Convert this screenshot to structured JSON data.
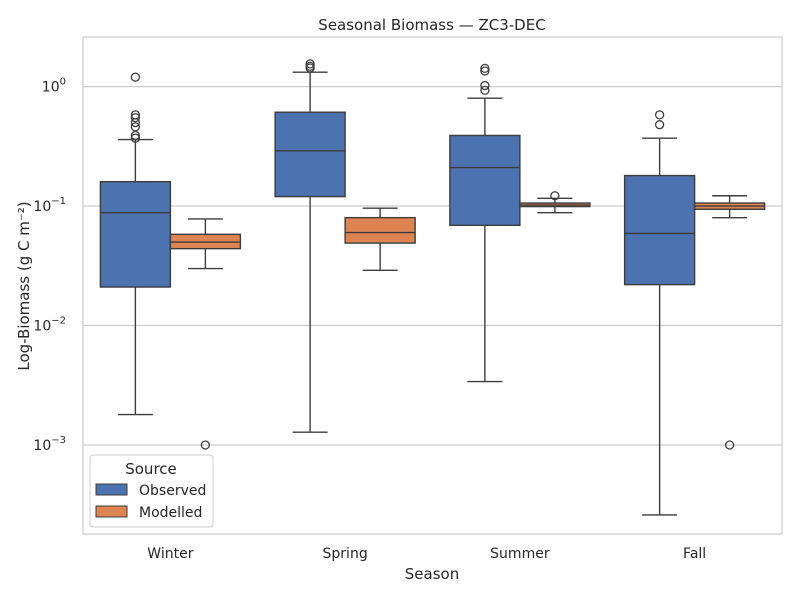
{
  "chart_data": {
    "type": "box",
    "title": "Seasonal Biomass — ZC3-DEC",
    "xlabel": "Season",
    "ylabel": "Log-Biomass (g C m⁻²)",
    "yscale": "log",
    "ylim": [
      0.00018,
      2.6
    ],
    "yticks": [
      {
        "value": 0.001,
        "base": "10",
        "exp": "−3"
      },
      {
        "value": 0.01,
        "base": "10",
        "exp": "−2"
      },
      {
        "value": 0.1,
        "base": "10",
        "exp": "−1"
      },
      {
        "value": 1,
        "base": "10",
        "exp": "0"
      }
    ],
    "grid": "horizontal",
    "categories": [
      "Winter",
      "Spring",
      "Summer",
      "Fall"
    ],
    "legend": {
      "title": "Source",
      "placement": "lower-left"
    },
    "series": [
      {
        "name": "Observed",
        "color": "#4c72b0",
        "boxes": [
          {
            "whislo": 0.0018,
            "q1": 0.021,
            "median": 0.088,
            "q3": 0.16,
            "whishi": 0.36,
            "fliers": [
              1.2,
              0.58,
              0.55,
              0.5,
              0.46,
              0.39,
              0.37
            ]
          },
          {
            "whislo": 0.00128,
            "q1": 0.12,
            "median": 0.29,
            "q3": 0.61,
            "whishi": 1.32,
            "fliers": [
              1.55,
              1.48,
              1.43
            ]
          },
          {
            "whislo": 0.0034,
            "q1": 0.069,
            "median": 0.21,
            "q3": 0.39,
            "whishi": 0.8,
            "fliers": [
              1.42,
              1.35,
              1.02,
              0.93
            ]
          },
          {
            "whislo": 0.00026,
            "q1": 0.022,
            "median": 0.059,
            "q3": 0.18,
            "whishi": 0.37,
            "fliers": [
              0.58,
              0.48
            ]
          }
        ]
      },
      {
        "name": "Modelled",
        "color": "#dd8452",
        "boxes": [
          {
            "whislo": 0.03,
            "q1": 0.044,
            "median": 0.05,
            "q3": 0.058,
            "whishi": 0.078,
            "fliers": [
              0.001
            ]
          },
          {
            "whislo": 0.029,
            "q1": 0.049,
            "median": 0.06,
            "q3": 0.08,
            "whishi": 0.096,
            "fliers": []
          },
          {
            "whislo": 0.088,
            "q1": 0.099,
            "median": 0.102,
            "q3": 0.106,
            "whishi": 0.116,
            "fliers": [
              0.122
            ]
          },
          {
            "whislo": 0.08,
            "q1": 0.094,
            "median": 0.1,
            "q3": 0.106,
            "whishi": 0.122,
            "fliers": [
              0.001
            ]
          }
        ]
      }
    ]
  }
}
